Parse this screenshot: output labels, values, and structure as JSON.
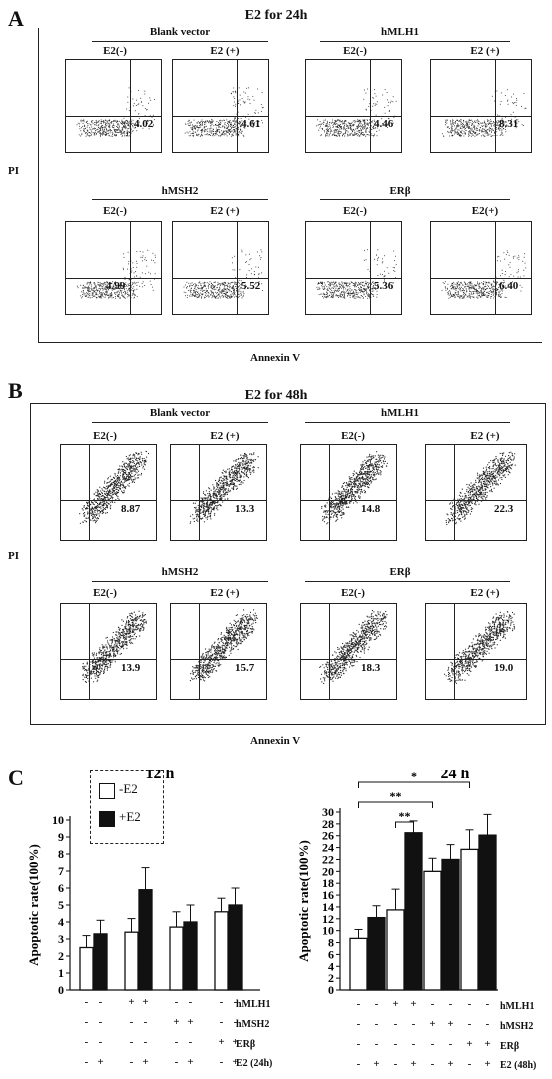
{
  "panelA": {
    "letter": "A",
    "title": "E2 for 24h",
    "y_axis": "PI",
    "x_axis": "Annexin V",
    "group_labels": [
      "Blank vector",
      "hMLH1",
      "hMSH2",
      "ERβ"
    ],
    "conditions": [
      "E2(-)",
      "E2 (+)",
      "E2(-)",
      "E2 (+)",
      "E2(-)",
      "E2 (+)",
      "E2(-)",
      "E2(+)"
    ],
    "values": [
      "4.02",
      "4.61",
      "4.46",
      "8.31",
      "4.99",
      "5.52",
      "5.36",
      "6.40"
    ]
  },
  "panelB": {
    "letter": "B",
    "title": "E2 for 48h",
    "y_axis": "PI",
    "x_axis": "Annexin V",
    "group_labels": [
      "Blank vector",
      "hMLH1",
      "hMSH2",
      "ERβ"
    ],
    "conditions": [
      "E2(-)",
      "E2 (+)",
      "E2(-)",
      "E2 (+)",
      "E2(-)",
      "E2 (+)",
      "E2(-)",
      "E2 (+)"
    ],
    "values": [
      "8.87",
      "13.3",
      "14.8",
      "22.3",
      "13.9",
      "15.7",
      "18.3",
      "19.0"
    ]
  },
  "panelC": {
    "letter": "C",
    "legend": [
      "-E2",
      "+E2"
    ],
    "row_labels_left": [
      "hMLH1",
      "hMSH2",
      "ERβ",
      "E2 (24h)"
    ],
    "row_labels_right": [
      "hMLH1",
      "hMSH2",
      "ERβ",
      "E2 (48h)"
    ],
    "sig_marks": [
      "**",
      "*",
      "**",
      "**"
    ]
  },
  "chart_data": [
    {
      "type": "bar",
      "title": "12 h",
      "ylabel": "Apoptotic rate(100%)",
      "ylim": [
        0,
        10
      ],
      "yticks": [
        0,
        1,
        2,
        3,
        4,
        5,
        6,
        7,
        8,
        9,
        10
      ],
      "categories": [
        "Blank vector",
        "hMLH1",
        "hMSH2",
        "ERβ"
      ],
      "series": [
        {
          "name": "-E2",
          "values": [
            2.5,
            3.4,
            3.7,
            4.6
          ],
          "errors": [
            0.7,
            0.8,
            0.9,
            0.8
          ],
          "color": "#ffffff"
        },
        {
          "name": "+E2",
          "values": [
            3.3,
            5.9,
            4.0,
            5.0
          ],
          "errors": [
            0.8,
            1.3,
            1.0,
            1.0
          ],
          "color": "#111111"
        }
      ]
    },
    {
      "type": "bar",
      "title": "24 h",
      "ylabel": "Apoptotic rate(100%)",
      "ylim": [
        0,
        30
      ],
      "yticks": [
        0,
        2,
        4,
        6,
        8,
        10,
        12,
        14,
        16,
        18,
        20,
        22,
        24,
        26,
        28,
        30
      ],
      "categories": [
        "Blank vector",
        "hMLH1",
        "hMSH2",
        "ERβ"
      ],
      "series": [
        {
          "name": "-E2",
          "values": [
            8.7,
            13.5,
            20.0,
            23.7
          ],
          "errors": [
            1.5,
            3.5,
            2.2,
            3.3
          ],
          "color": "#ffffff"
        },
        {
          "name": "+E2",
          "values": [
            12.2,
            26.5,
            22.0,
            26.1
          ],
          "errors": [
            2.0,
            2.0,
            2.5,
            3.5
          ],
          "color": "#111111"
        }
      ]
    }
  ]
}
